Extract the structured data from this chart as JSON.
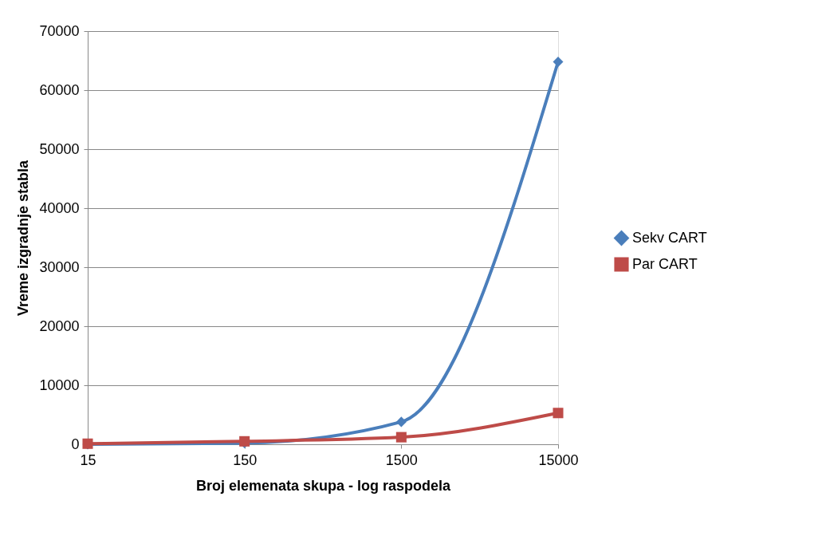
{
  "chart_data": {
    "type": "line",
    "xlabel": "Broj elemenata skupa - log raspodela",
    "ylabel": "Vreme izgradnje stabla",
    "categories": [
      "15",
      "150",
      "1500",
      "15000"
    ],
    "series": [
      {
        "name": "Sekv CART",
        "color": "#4a7ebb",
        "marker": "diamond",
        "values": [
          0,
          200,
          3800,
          64800
        ]
      },
      {
        "name": "Par CART",
        "color": "#be4b48",
        "marker": "square",
        "values": [
          100,
          500,
          1200,
          5300
        ]
      }
    ],
    "ylim": [
      0,
      70000
    ],
    "yticks": [
      0,
      10000,
      20000,
      30000,
      40000,
      50000,
      60000,
      70000
    ],
    "grid": "y",
    "legend": "right",
    "line_style": "solid"
  }
}
